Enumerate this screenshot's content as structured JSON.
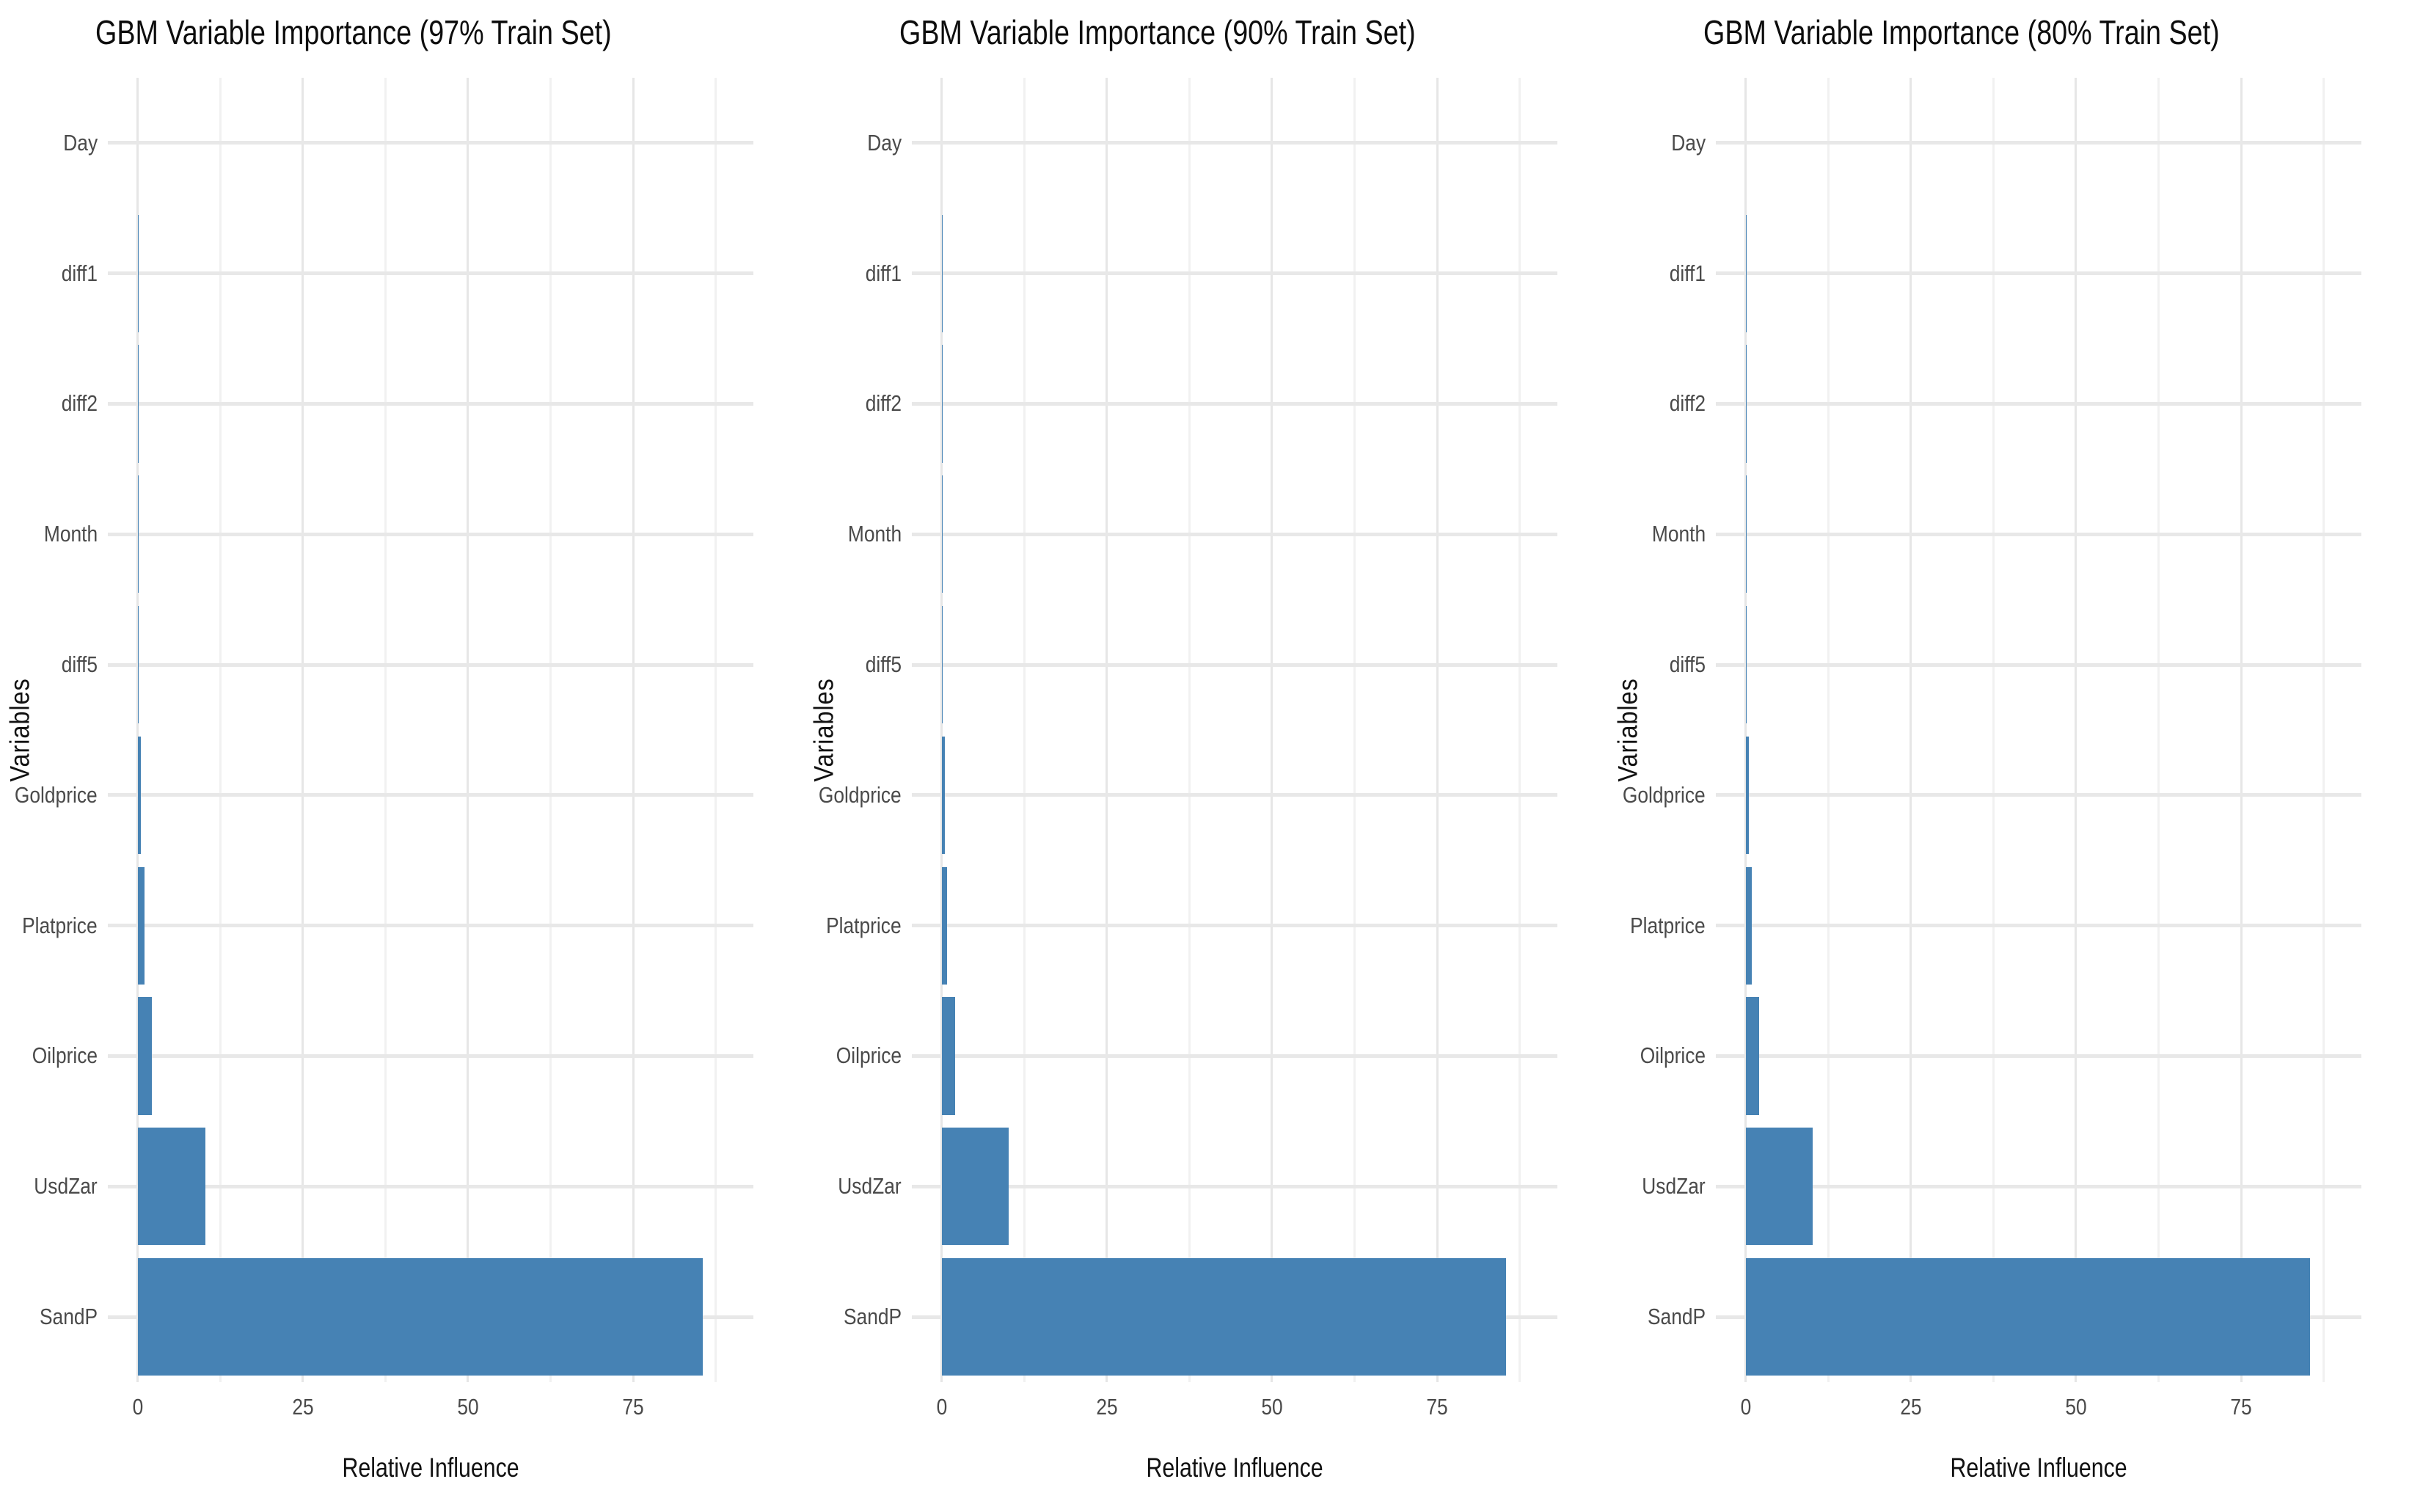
{
  "figure": {
    "background": "#ffffff",
    "panel_count": 3
  },
  "style": {
    "bar_color": "#4682b4",
    "grid_major_color": "#e6e6e6",
    "grid_minor_color": "#f1f1f1",
    "grid_row_color": "#e8e8e8",
    "tick_label_color": "#4a4a4a",
    "title_color": "#0d0d0d",
    "axis_title_color": "#111111"
  },
  "chart_data": [
    {
      "type": "bar",
      "orientation": "horizontal",
      "title": "GBM Variable Importance (97% Train Set)",
      "xlabel": "Relative Influence",
      "ylabel": "Variables",
      "categories": [
        "Day",
        "diff1",
        "diff2",
        "Month",
        "diff5",
        "Goldprice",
        "Platprice",
        "Oilprice",
        "UsdZar",
        "SandP"
      ],
      "values": [
        0,
        0.02,
        0.07,
        0.1,
        0.15,
        0.5,
        1.0,
        2.2,
        10.3,
        85.5
      ],
      "xticks": [
        0,
        25,
        50,
        75
      ],
      "xlim": [
        -4.5,
        93.2
      ],
      "grid": "on",
      "legend": "none"
    },
    {
      "type": "bar",
      "orientation": "horizontal",
      "title": "GBM Variable Importance (90% Train Set)",
      "xlabel": "Relative Influence",
      "ylabel": "Variables",
      "categories": [
        "Day",
        "diff1",
        "diff2",
        "Month",
        "diff5",
        "Goldprice",
        "Platprice",
        "Oilprice",
        "UsdZar",
        "SandP"
      ],
      "values": [
        0,
        0.02,
        0.07,
        0.1,
        0.13,
        0.45,
        0.85,
        2.0,
        10.2,
        85.4
      ],
      "xticks": [
        0,
        25,
        50,
        75
      ],
      "xlim": [
        -4.5,
        93.2
      ],
      "grid": "on",
      "legend": "none"
    },
    {
      "type": "bar",
      "orientation": "horizontal",
      "title": "GBM Variable Importance (80% Train Set)",
      "xlabel": "Relative Influence",
      "ylabel": "Variables",
      "categories": [
        "Day",
        "diff1",
        "diff2",
        "Month",
        "diff5",
        "Goldprice",
        "Platprice",
        "Oilprice",
        "UsdZar",
        "SandP"
      ],
      "values": [
        0,
        0.02,
        0.07,
        0.1,
        0.13,
        0.5,
        0.9,
        2.1,
        10.2,
        85.4
      ],
      "xticks": [
        0,
        25,
        50,
        75
      ],
      "xlim": [
        -4.5,
        93.2
      ],
      "grid": "on",
      "legend": "none"
    }
  ]
}
